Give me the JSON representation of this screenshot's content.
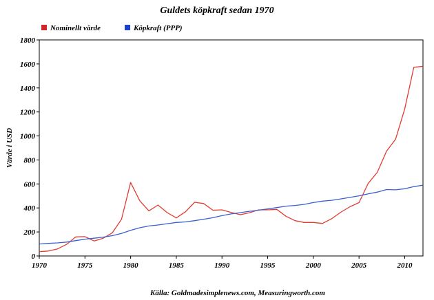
{
  "chart_data": {
    "type": "line",
    "title": "Guldets köpkraft sedan 1970",
    "ylabel": "Värde i USD",
    "xlabel": "",
    "xlim": [
      1970,
      2012
    ],
    "ylim": [
      0,
      1800
    ],
    "x_ticks": [
      1970,
      1975,
      1980,
      1985,
      1990,
      1995,
      2000,
      2005,
      2010
    ],
    "y_ticks": [
      0,
      200,
      400,
      600,
      800,
      1000,
      1200,
      1400,
      1600,
      1800
    ],
    "grid": false,
    "legend_position": "top-left",
    "source": "Källa: Goldmadesimplenews.com, Measuringworth.com",
    "x": [
      1970,
      1971,
      1972,
      1973,
      1974,
      1975,
      1976,
      1977,
      1978,
      1979,
      1980,
      1981,
      1982,
      1983,
      1984,
      1985,
      1986,
      1987,
      1988,
      1989,
      1990,
      1991,
      1992,
      1993,
      1994,
      1995,
      1996,
      1997,
      1998,
      1999,
      2000,
      2001,
      2002,
      2003,
      2004,
      2005,
      2006,
      2007,
      2008,
      2009,
      2010,
      2011,
      2012
    ],
    "series": [
      {
        "name": "Nominellt värde",
        "color": "#e03c31",
        "values": [
          36,
          41,
          59,
          97,
          159,
          161,
          125,
          148,
          193,
          306,
          612,
          460,
          376,
          424,
          361,
          317,
          368,
          447,
          437,
          381,
          384,
          363,
          344,
          360,
          384,
          384,
          388,
          331,
          294,
          279,
          279,
          271,
          310,
          364,
          410,
          445,
          604,
          697,
          872,
          972,
          1225,
          1572,
          1580
        ]
      },
      {
        "name": "Köpkraft (PPP)",
        "color": "#3a5fcd",
        "values": [
          100,
          105,
          109,
          116,
          128,
          140,
          148,
          157,
          169,
          188,
          213,
          235,
          250,
          258,
          269,
          279,
          284,
          294,
          306,
          319,
          336,
          350,
          361,
          372,
          381,
          392,
          403,
          415,
          421,
          430,
          445,
          457,
          464,
          475,
          488,
          501,
          517,
          532,
          553,
          551,
          560,
          578,
          590
        ]
      }
    ],
    "legend_swatches": [
      "#cc2a2a",
      "#1f3fcc"
    ]
  }
}
